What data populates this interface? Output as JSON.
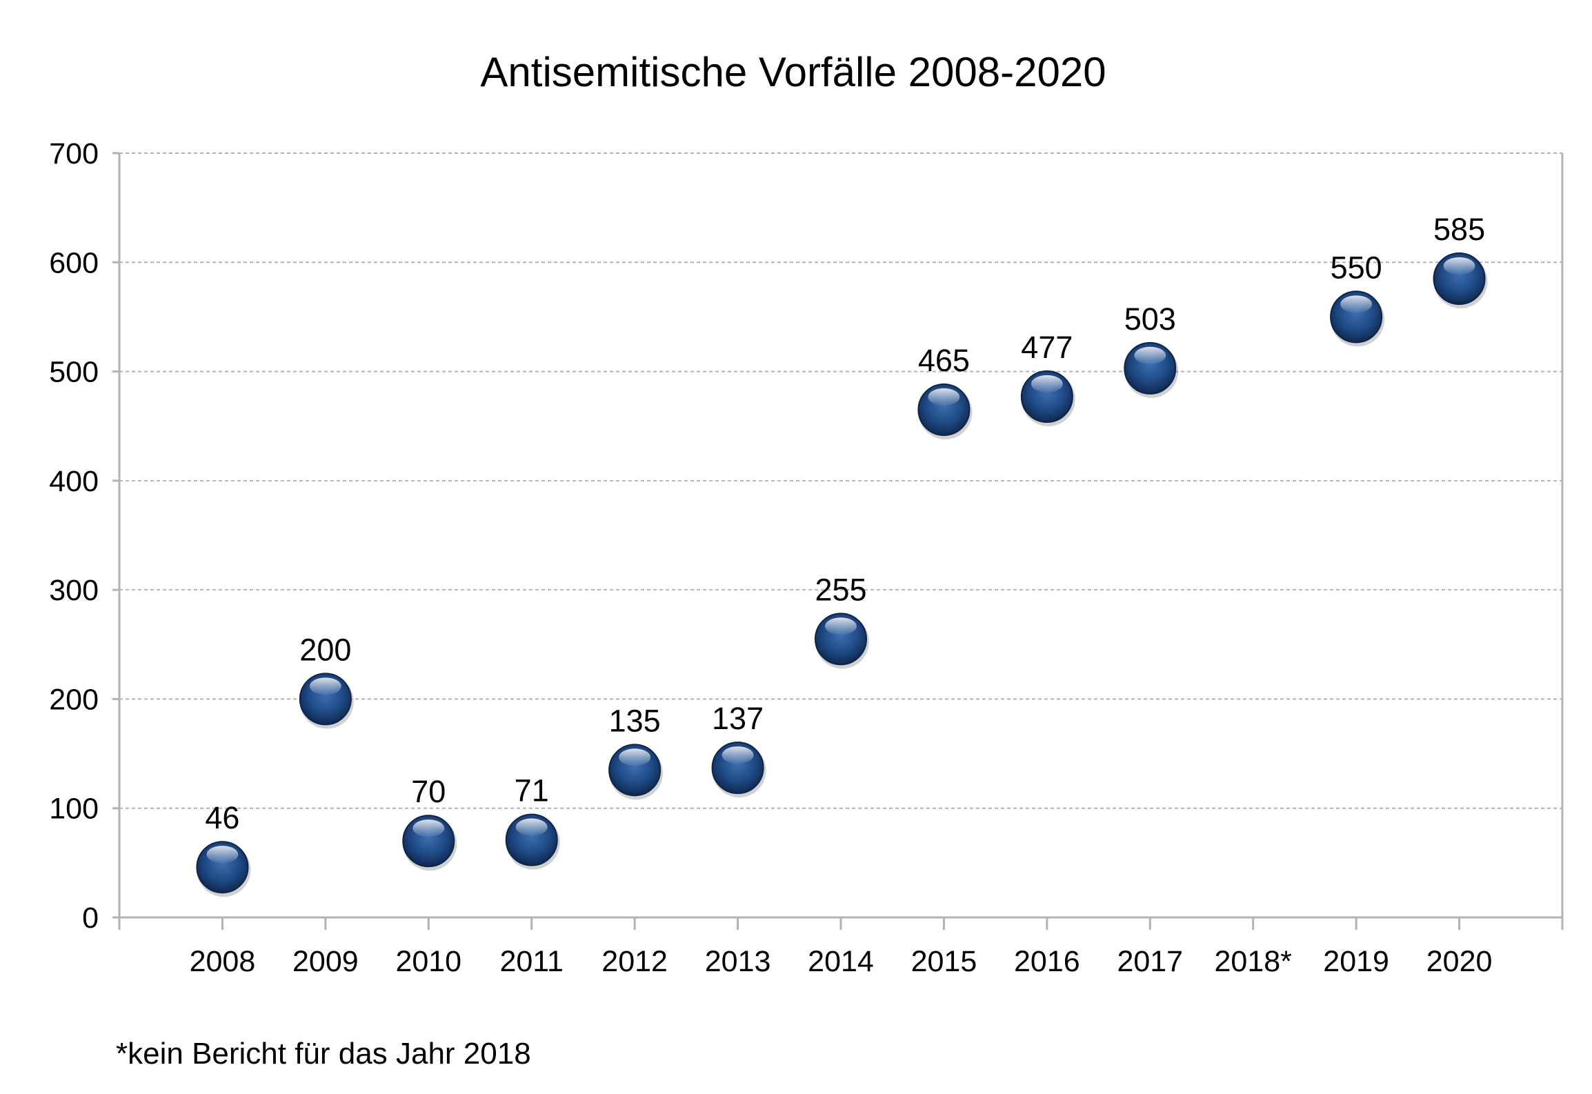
{
  "chart_data": {
    "type": "scatter",
    "title": "Antisemitische Vorfälle 2008-2020",
    "xlabel": "",
    "ylabel": "",
    "categories": [
      "2008",
      "2009",
      "2010",
      "2011",
      "2012",
      "2013",
      "2014",
      "2015",
      "2016",
      "2017",
      "2018*",
      "2019",
      "2020"
    ],
    "values": [
      46,
      200,
      70,
      71,
      135,
      137,
      255,
      465,
      477,
      503,
      null,
      550,
      585
    ],
    "data_labels": [
      "46",
      "200",
      "70",
      "71",
      "135",
      "137",
      "255",
      "465",
      "477",
      "503",
      "",
      "550",
      "585"
    ],
    "ylim": [
      0,
      700
    ],
    "yticks": [
      "0",
      "100",
      "200",
      "300",
      "400",
      "500",
      "600",
      "700"
    ],
    "grid": "horizontal dotted",
    "legend": "none",
    "marker_color": "#1f3f73",
    "footnote": "*kein Bericht für das Jahr 2018"
  }
}
